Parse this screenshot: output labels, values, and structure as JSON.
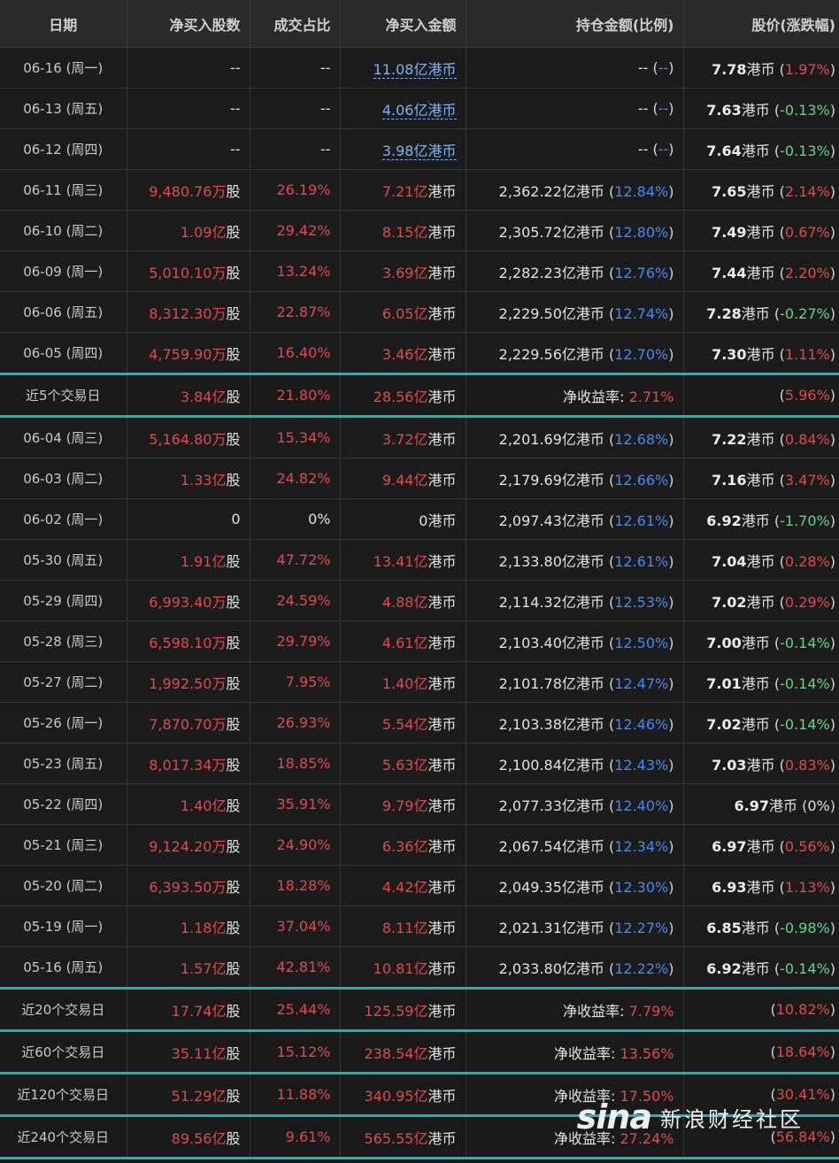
{
  "headers": [
    "日期",
    "净买入股数",
    "成交占比",
    "净买入金额",
    "持仓金额(比例)",
    "股价(涨跌幅)"
  ],
  "rows": [
    {
      "date": "06-16 (周一)",
      "shares": "--",
      "ratio": "--",
      "amount_num": "11.08亿",
      "amount_unit": "港币",
      "amount_link": true,
      "hold_num": "--",
      "hold_pct": "--",
      "price": "7.78",
      "price_unit": "港币",
      "chg": "1.97%",
      "chg_dir": "up"
    },
    {
      "date": "06-13 (周五)",
      "shares": "--",
      "ratio": "--",
      "amount_num": "4.06亿",
      "amount_unit": "港币",
      "amount_link": true,
      "hold_num": "--",
      "hold_pct": "--",
      "price": "7.63",
      "price_unit": "港币",
      "chg": "-0.13%",
      "chg_dir": "down"
    },
    {
      "date": "06-12 (周四)",
      "shares": "--",
      "ratio": "--",
      "amount_num": "3.98亿",
      "amount_unit": "港币",
      "amount_link": true,
      "hold_num": "--",
      "hold_pct": "--",
      "price": "7.64",
      "price_unit": "港币",
      "chg": "-0.13%",
      "chg_dir": "down"
    },
    {
      "date": "06-11 (周三)",
      "shares_num": "9,480.76万",
      "shares_unit": "股",
      "ratio": "26.19%",
      "amount_num": "7.21亿",
      "amount_unit": "港币",
      "hold_num": "2,362.22亿港币",
      "hold_pct": "12.84%",
      "price": "7.65",
      "price_unit": "港币",
      "chg": "2.14%",
      "chg_dir": "up"
    },
    {
      "date": "06-10 (周二)",
      "shares_num": "1.09亿",
      "shares_unit": "股",
      "ratio": "29.42%",
      "amount_num": "8.15亿",
      "amount_unit": "港币",
      "hold_num": "2,305.72亿港币",
      "hold_pct": "12.80%",
      "price": "7.49",
      "price_unit": "港币",
      "chg": "0.67%",
      "chg_dir": "up"
    },
    {
      "date": "06-09 (周一)",
      "shares_num": "5,010.10万",
      "shares_unit": "股",
      "ratio": "13.24%",
      "amount_num": "3.69亿",
      "amount_unit": "港币",
      "hold_num": "2,282.23亿港币",
      "hold_pct": "12.76%",
      "price": "7.44",
      "price_unit": "港币",
      "chg": "2.20%",
      "chg_dir": "up"
    },
    {
      "date": "06-06 (周五)",
      "shares_num": "8,312.30万",
      "shares_unit": "股",
      "ratio": "22.87%",
      "amount_num": "6.05亿",
      "amount_unit": "港币",
      "hold_num": "2,229.50亿港币",
      "hold_pct": "12.74%",
      "price": "7.28",
      "price_unit": "港币",
      "chg": "-0.27%",
      "chg_dir": "down"
    },
    {
      "date": "06-05 (周四)",
      "shares_num": "4,759.90万",
      "shares_unit": "股",
      "ratio": "16.40%",
      "amount_num": "3.46亿",
      "amount_unit": "港币",
      "hold_num": "2,229.56亿港币",
      "hold_pct": "12.70%",
      "price": "7.30",
      "price_unit": "港币",
      "chg": "1.11%",
      "chg_dir": "up"
    },
    {
      "summary": true,
      "topline": true,
      "date": "近5个交易日",
      "shares_num": "3.84亿",
      "shares_unit": "股",
      "ratio": "21.80%",
      "amount_num": "28.56亿",
      "amount_unit": "港币",
      "yield_label": "净收益率:",
      "yield": "2.71%",
      "chg": "5.96%",
      "chg_dir": "up"
    },
    {
      "date": "06-04 (周三)",
      "shares_num": "5,164.80万",
      "shares_unit": "股",
      "ratio": "15.34%",
      "amount_num": "3.72亿",
      "amount_unit": "港币",
      "hold_num": "2,201.69亿港币",
      "hold_pct": "12.68%",
      "price": "7.22",
      "price_unit": "港币",
      "chg": "0.84%",
      "chg_dir": "up"
    },
    {
      "date": "06-03 (周二)",
      "shares_num": "1.33亿",
      "shares_unit": "股",
      "ratio": "24.82%",
      "amount_num": "9.44亿",
      "amount_unit": "港币",
      "hold_num": "2,179.69亿港币",
      "hold_pct": "12.66%",
      "price": "7.16",
      "price_unit": "港币",
      "chg": "3.47%",
      "chg_dir": "up"
    },
    {
      "date": "06-02 (周一)",
      "shares": "0",
      "ratio": "0%",
      "ratio_plain": true,
      "amount_num": "0",
      "amount_unit": "港币",
      "amount_plain": true,
      "hold_num": "2,097.43亿港币",
      "hold_pct": "12.61%",
      "price": "6.92",
      "price_unit": "港币",
      "chg": "-1.70%",
      "chg_dir": "down"
    },
    {
      "date": "05-30 (周五)",
      "shares_num": "1.91亿",
      "shares_unit": "股",
      "ratio": "47.72%",
      "amount_num": "13.41亿",
      "amount_unit": "港币",
      "hold_num": "2,133.80亿港币",
      "hold_pct": "12.61%",
      "price": "7.04",
      "price_unit": "港币",
      "chg": "0.28%",
      "chg_dir": "up"
    },
    {
      "date": "05-29 (周四)",
      "shares_num": "6,993.40万",
      "shares_unit": "股",
      "ratio": "24.59%",
      "amount_num": "4.88亿",
      "amount_unit": "港币",
      "hold_num": "2,114.32亿港币",
      "hold_pct": "12.53%",
      "price": "7.02",
      "price_unit": "港币",
      "chg": "0.29%",
      "chg_dir": "up"
    },
    {
      "date": "05-28 (周三)",
      "shares_num": "6,598.10万",
      "shares_unit": "股",
      "ratio": "29.79%",
      "amount_num": "4.61亿",
      "amount_unit": "港币",
      "hold_num": "2,103.40亿港币",
      "hold_pct": "12.50%",
      "price": "7.00",
      "price_unit": "港币",
      "chg": "-0.14%",
      "chg_dir": "down"
    },
    {
      "date": "05-27 (周二)",
      "shares_num": "1,992.50万",
      "shares_unit": "股",
      "ratio": "7.95%",
      "amount_num": "1.40亿",
      "amount_unit": "港币",
      "hold_num": "2,101.78亿港币",
      "hold_pct": "12.47%",
      "price": "7.01",
      "price_unit": "港币",
      "chg": "-0.14%",
      "chg_dir": "down"
    },
    {
      "date": "05-26 (周一)",
      "shares_num": "7,870.70万",
      "shares_unit": "股",
      "ratio": "26.93%",
      "amount_num": "5.54亿",
      "amount_unit": "港币",
      "hold_num": "2,103.38亿港币",
      "hold_pct": "12.46%",
      "price": "7.02",
      "price_unit": "港币",
      "chg": "-0.14%",
      "chg_dir": "down"
    },
    {
      "date": "05-23 (周五)",
      "shares_num": "8,017.34万",
      "shares_unit": "股",
      "ratio": "18.85%",
      "amount_num": "5.63亿",
      "amount_unit": "港币",
      "hold_num": "2,100.84亿港币",
      "hold_pct": "12.43%",
      "price": "7.03",
      "price_unit": "港币",
      "chg": "0.83%",
      "chg_dir": "up"
    },
    {
      "date": "05-22 (周四)",
      "shares_num": "1.40亿",
      "shares_unit": "股",
      "ratio": "35.91%",
      "amount_num": "9.79亿",
      "amount_unit": "港币",
      "hold_num": "2,077.33亿港币",
      "hold_pct": "12.40%",
      "price": "6.97",
      "price_unit": "港币",
      "chg": "0%",
      "chg_dir": "flat"
    },
    {
      "date": "05-21 (周三)",
      "shares_num": "9,124.20万",
      "shares_unit": "股",
      "ratio": "24.90%",
      "amount_num": "6.36亿",
      "amount_unit": "港币",
      "hold_num": "2,067.54亿港币",
      "hold_pct": "12.34%",
      "price": "6.97",
      "price_unit": "港币",
      "chg": "0.56%",
      "chg_dir": "up"
    },
    {
      "date": "05-20 (周二)",
      "shares_num": "6,393.50万",
      "shares_unit": "股",
      "ratio": "18.28%",
      "amount_num": "4.42亿",
      "amount_unit": "港币",
      "hold_num": "2,049.35亿港币",
      "hold_pct": "12.30%",
      "price": "6.93",
      "price_unit": "港币",
      "chg": "1.13%",
      "chg_dir": "up"
    },
    {
      "date": "05-19 (周一)",
      "shares_num": "1.18亿",
      "shares_unit": "股",
      "ratio": "37.04%",
      "amount_num": "8.11亿",
      "amount_unit": "港币",
      "hold_num": "2,021.31亿港币",
      "hold_pct": "12.27%",
      "price": "6.85",
      "price_unit": "港币",
      "chg": "-0.98%",
      "chg_dir": "down"
    },
    {
      "date": "05-16 (周五)",
      "shares_num": "1.57亿",
      "shares_unit": "股",
      "ratio": "42.81%",
      "amount_num": "10.81亿",
      "amount_unit": "港币",
      "hold_num": "2,033.80亿港币",
      "hold_pct": "12.22%",
      "price": "6.92",
      "price_unit": "港币",
      "chg": "-0.14%",
      "chg_dir": "down"
    },
    {
      "summary": true,
      "topline": true,
      "date": "近20个交易日",
      "shares_num": "17.74亿",
      "shares_unit": "股",
      "ratio": "25.44%",
      "amount_num": "125.59亿",
      "amount_unit": "港币",
      "yield_label": "净收益率:",
      "yield": "7.79%",
      "chg": "10.82%",
      "chg_dir": "up"
    },
    {
      "summary": true,
      "date": "近60个交易日",
      "shares_num": "35.11亿",
      "shares_unit": "股",
      "ratio": "15.12%",
      "amount_num": "238.54亿",
      "amount_unit": "港币",
      "yield_label": "净收益率:",
      "yield": "13.56%",
      "chg": "18.64%",
      "chg_dir": "up"
    },
    {
      "summary": true,
      "date": "近120个交易日",
      "shares_num": "51.29亿",
      "shares_unit": "股",
      "ratio": "11.88%",
      "amount_num": "340.95亿",
      "amount_unit": "港币",
      "yield_label": "净收益率:",
      "yield": "17.50%",
      "chg": "30.41%",
      "chg_dir": "up"
    },
    {
      "summary": true,
      "date": "近240个交易日",
      "shares_num": "89.56亿",
      "shares_unit": "股",
      "ratio": "9.61%",
      "amount_num": "565.55亿",
      "amount_unit": "港币",
      "yield_label": "净收益率:",
      "yield": "27.24%",
      "chg": "56.84%",
      "chg_dir": "up"
    }
  ],
  "watermark": {
    "logo": "sina",
    "text": "新浪财经社区"
  },
  "colors": {
    "up": "#e4474f",
    "down": "#5ed68a",
    "pct": "#3d8bff",
    "divider": "#1fb4b4"
  }
}
